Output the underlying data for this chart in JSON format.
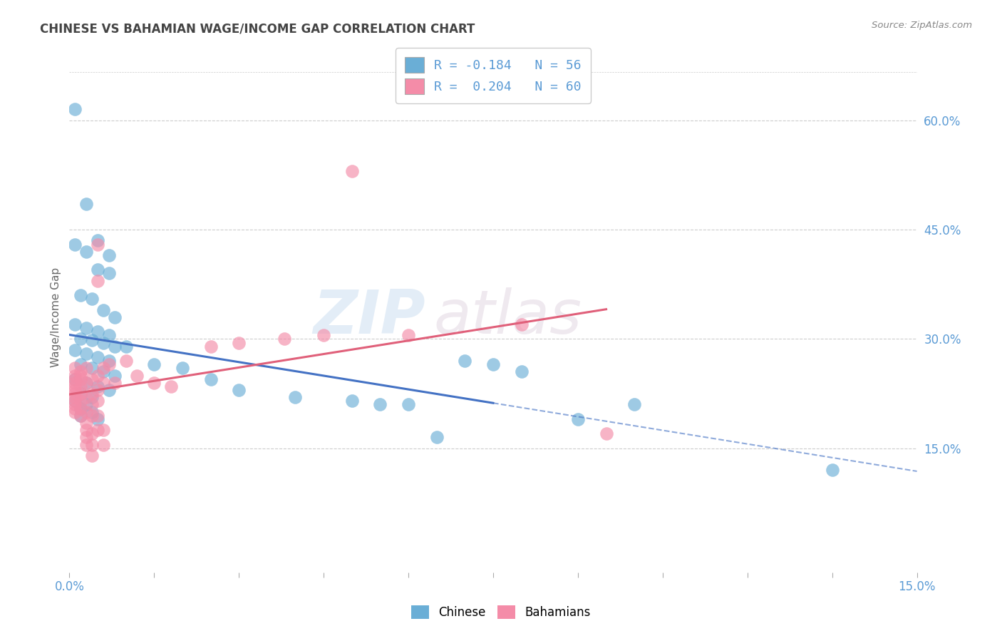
{
  "title": "CHINESE VS BAHAMIAN WAGE/INCOME GAP CORRELATION CHART",
  "source": "Source: ZipAtlas.com",
  "ylabel": "Wage/Income Gap",
  "right_yticks": [
    "60.0%",
    "45.0%",
    "30.0%",
    "15.0%"
  ],
  "right_ytick_vals": [
    0.6,
    0.45,
    0.3,
    0.15
  ],
  "xmin": 0.0,
  "xmax": 0.15,
  "ymin": -0.02,
  "ymax": 0.68,
  "watermark_zip": "ZIP",
  "watermark_atlas": "atlas",
  "legend_entries": [
    {
      "label": "R = -0.184   N = 56",
      "color": "#aec6e8"
    },
    {
      "label": "R =  0.204   N = 60",
      "color": "#f4b8c8"
    }
  ],
  "chinese_color": "#6aaed6",
  "bahamian_color": "#f48ca8",
  "chinese_line_color": "#4472c4",
  "bahamian_line_color": "#e0607a",
  "background_color": "#ffffff",
  "grid_color": "#cccccc",
  "title_color": "#444444",
  "axis_label_color": "#5b9bd5",
  "chinese_points": [
    [
      0.001,
      0.615
    ],
    [
      0.003,
      0.485
    ],
    [
      0.005,
      0.435
    ],
    [
      0.007,
      0.415
    ],
    [
      0.001,
      0.43
    ],
    [
      0.003,
      0.42
    ],
    [
      0.005,
      0.395
    ],
    [
      0.007,
      0.39
    ],
    [
      0.002,
      0.36
    ],
    [
      0.004,
      0.355
    ],
    [
      0.006,
      0.34
    ],
    [
      0.008,
      0.33
    ],
    [
      0.001,
      0.32
    ],
    [
      0.003,
      0.315
    ],
    [
      0.005,
      0.31
    ],
    [
      0.007,
      0.305
    ],
    [
      0.002,
      0.3
    ],
    [
      0.004,
      0.298
    ],
    [
      0.006,
      0.295
    ],
    [
      0.008,
      0.29
    ],
    [
      0.001,
      0.285
    ],
    [
      0.003,
      0.28
    ],
    [
      0.005,
      0.275
    ],
    [
      0.007,
      0.27
    ],
    [
      0.002,
      0.265
    ],
    [
      0.004,
      0.26
    ],
    [
      0.006,
      0.255
    ],
    [
      0.008,
      0.25
    ],
    [
      0.001,
      0.245
    ],
    [
      0.003,
      0.24
    ],
    [
      0.005,
      0.235
    ],
    [
      0.007,
      0.23
    ],
    [
      0.002,
      0.225
    ],
    [
      0.004,
      0.22
    ],
    [
      0.001,
      0.215
    ],
    [
      0.003,
      0.21
    ],
    [
      0.002,
      0.205
    ],
    [
      0.004,
      0.2
    ],
    [
      0.002,
      0.195
    ],
    [
      0.005,
      0.19
    ],
    [
      0.01,
      0.29
    ],
    [
      0.015,
      0.265
    ],
    [
      0.02,
      0.26
    ],
    [
      0.025,
      0.245
    ],
    [
      0.03,
      0.23
    ],
    [
      0.04,
      0.22
    ],
    [
      0.05,
      0.215
    ],
    [
      0.055,
      0.21
    ],
    [
      0.06,
      0.21
    ],
    [
      0.07,
      0.27
    ],
    [
      0.075,
      0.265
    ],
    [
      0.08,
      0.255
    ],
    [
      0.065,
      0.165
    ],
    [
      0.09,
      0.19
    ],
    [
      0.1,
      0.21
    ],
    [
      0.135,
      0.12
    ]
  ],
  "bahamian_points": [
    [
      0.001,
      0.26
    ],
    [
      0.001,
      0.25
    ],
    [
      0.001,
      0.245
    ],
    [
      0.001,
      0.24
    ],
    [
      0.001,
      0.235
    ],
    [
      0.001,
      0.23
    ],
    [
      0.001,
      0.225
    ],
    [
      0.001,
      0.22
    ],
    [
      0.001,
      0.215
    ],
    [
      0.001,
      0.21
    ],
    [
      0.001,
      0.205
    ],
    [
      0.001,
      0.2
    ],
    [
      0.002,
      0.255
    ],
    [
      0.002,
      0.25
    ],
    [
      0.002,
      0.245
    ],
    [
      0.002,
      0.235
    ],
    [
      0.002,
      0.225
    ],
    [
      0.002,
      0.215
    ],
    [
      0.002,
      0.205
    ],
    [
      0.002,
      0.195
    ],
    [
      0.003,
      0.26
    ],
    [
      0.003,
      0.24
    ],
    [
      0.003,
      0.22
    ],
    [
      0.003,
      0.2
    ],
    [
      0.003,
      0.185
    ],
    [
      0.003,
      0.175
    ],
    [
      0.003,
      0.165
    ],
    [
      0.003,
      0.155
    ],
    [
      0.004,
      0.245
    ],
    [
      0.004,
      0.225
    ],
    [
      0.004,
      0.21
    ],
    [
      0.004,
      0.195
    ],
    [
      0.004,
      0.17
    ],
    [
      0.004,
      0.155
    ],
    [
      0.004,
      0.14
    ],
    [
      0.005,
      0.43
    ],
    [
      0.005,
      0.38
    ],
    [
      0.005,
      0.25
    ],
    [
      0.005,
      0.23
    ],
    [
      0.005,
      0.215
    ],
    [
      0.005,
      0.195
    ],
    [
      0.005,
      0.175
    ],
    [
      0.006,
      0.26
    ],
    [
      0.006,
      0.24
    ],
    [
      0.006,
      0.175
    ],
    [
      0.006,
      0.155
    ],
    [
      0.007,
      0.265
    ],
    [
      0.008,
      0.24
    ],
    [
      0.01,
      0.27
    ],
    [
      0.012,
      0.25
    ],
    [
      0.015,
      0.24
    ],
    [
      0.018,
      0.235
    ],
    [
      0.025,
      0.29
    ],
    [
      0.03,
      0.295
    ],
    [
      0.038,
      0.3
    ],
    [
      0.045,
      0.305
    ],
    [
      0.05,
      0.53
    ],
    [
      0.06,
      0.305
    ],
    [
      0.08,
      0.32
    ],
    [
      0.095,
      0.17
    ]
  ]
}
